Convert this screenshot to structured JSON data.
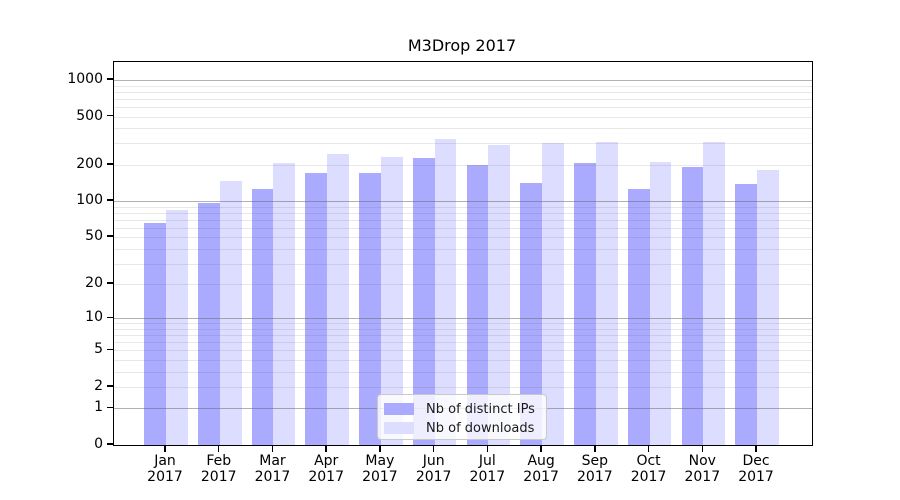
{
  "chart_data": {
    "type": "bar",
    "title": "M3Drop 2017",
    "categories": [
      "Jan",
      "Feb",
      "Mar",
      "Apr",
      "May",
      "Jun",
      "Jul",
      "Aug",
      "Sep",
      "Oct",
      "Nov",
      "Dec"
    ],
    "category_year": "2017",
    "series": [
      {
        "name": "Nb of distinct IPs",
        "color": "#aaaaff",
        "values": [
          66,
          96,
          126,
          172,
          172,
          226,
          201,
          141,
          208,
          126,
          193,
          138
        ]
      },
      {
        "name": "Nb of downloads",
        "color": "#ddddff",
        "values": [
          85,
          148,
          205,
          245,
          230,
          326,
          292,
          300,
          311,
          209,
          310,
          181
        ]
      }
    ],
    "xlabel": "",
    "ylabel": "",
    "y_scale": "log10(value+1)",
    "ylim": [
      0,
      1405
    ],
    "y_ticks": [
      0,
      1,
      2,
      5,
      10,
      20,
      50,
      100,
      200,
      500,
      1000
    ],
    "grid": {
      "enabled": true,
      "major_at": [
        1,
        10,
        100,
        1000
      ],
      "minor_at": "2-9 multiples per decade"
    },
    "legend": {
      "position": "inside-bottom-center"
    }
  },
  "colors": {
    "grid_major": "rgba(100,100,100,0.50)",
    "grid_minor": "rgba(100,100,100,0.15)",
    "spine": "#000000",
    "background": "#ffffff"
  }
}
